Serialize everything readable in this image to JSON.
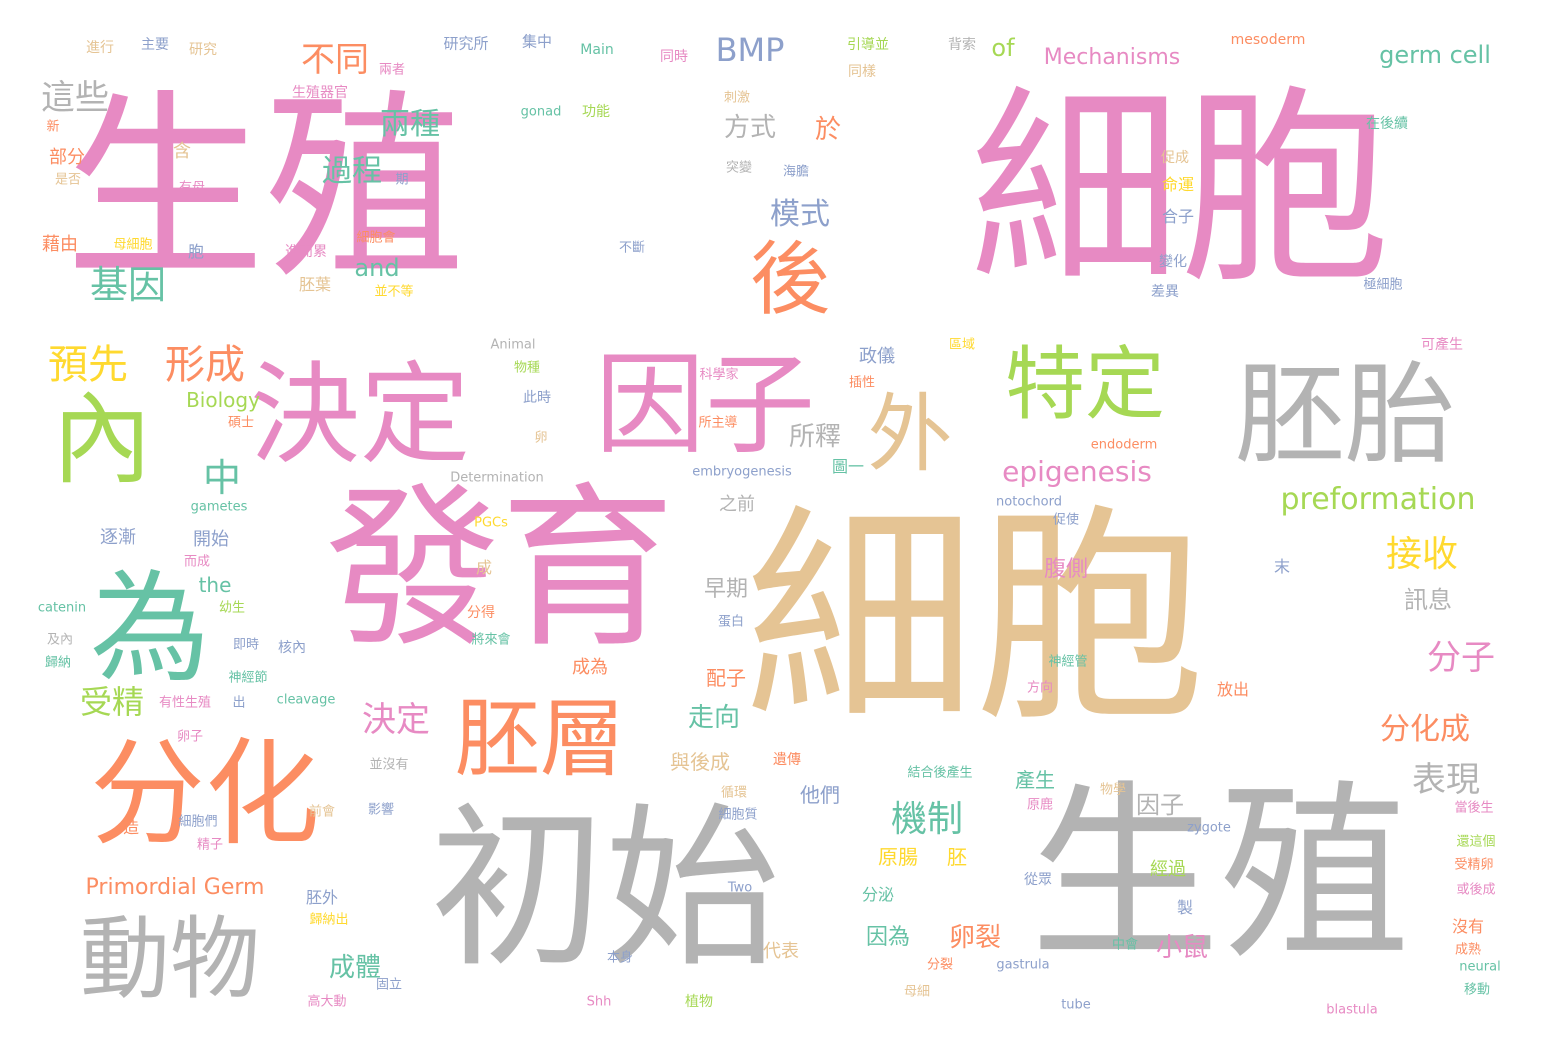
{
  "palette": {
    "pink": "#e78ac3",
    "tan": "#e5c494",
    "grey": "#b3b3b3",
    "orange": "#fc8d62",
    "green": "#a6d854",
    "teal": "#66c2a5",
    "yellow": "#ffd92f",
    "blue": "#8da0cb",
    "background": "#ffffff"
  },
  "words": [
    "生殖",
    "細胞",
    "細胞",
    "發育",
    "初始",
    "生殖",
    "決定",
    "因子",
    "胚胎",
    "內",
    "為",
    "分化",
    "外",
    "特定",
    "後",
    "胚層",
    "動物",
    "預先",
    "形成",
    "基因",
    "中",
    "機制",
    "接收",
    "受精",
    "決定",
    "表現",
    "分子",
    "分化成",
    "BMP",
    "不同",
    "這些",
    "兩種",
    "過程",
    "模式",
    "方式",
    "於",
    "所釋",
    "epigenesis",
    "preformation",
    "germ cell",
    "Mechanisms",
    "of",
    "and",
    "Biology",
    "Primordial Germ",
    "the",
    "因子",
    "走向",
    "成體",
    "卵裂",
    "小鼠",
    "訊息",
    "早期",
    "腹側",
    "因為",
    "原腸",
    "胚",
    "配子",
    "與後成",
    "產生",
    "經過",
    "成為",
    "他們",
    "進行",
    "主要",
    "研究",
    "研究所",
    "集中",
    "Main",
    "同時",
    "引導並",
    "背索",
    "mesoderm",
    "兩者",
    "生殖器官",
    "gonad",
    "功能",
    "刺激",
    "同樣",
    "新",
    "含",
    "部分",
    "是否",
    "有母",
    "期",
    "突變",
    "海膽",
    "在後續",
    "促成",
    "命運",
    "合子",
    "變化",
    "差異",
    "極細胞",
    "藉由",
    "母細胞",
    "胞",
    "進而累",
    "細胞會",
    "不斷",
    "胚葉",
    "並不等",
    "Animal",
    "物種",
    "政儀",
    "可產生",
    "Determination",
    "此時",
    "科學家",
    "插性",
    "區域",
    "卵",
    "所主導",
    "圖一",
    "endoderm",
    "embryogenesis",
    "碩士",
    "notochord",
    "促使",
    "之前",
    "gametes",
    "開始",
    "逐漸",
    "而成",
    "PGCs",
    "成",
    "末",
    "catenin",
    "幼生",
    "分得",
    "將來會",
    "蛋白",
    "即時",
    "核內",
    "神經節",
    "方向",
    "神經管",
    "及內",
    "歸納",
    "cleavage",
    "放出",
    "有性生殖",
    "出",
    "卵子",
    "並沒有",
    "循環",
    "遺傳",
    "結合後產生",
    "影響",
    "前會",
    "細胞們",
    "精子",
    "細胞質",
    "物學",
    "原鹿",
    "zygote",
    "當後生",
    "還這個",
    "受精卵",
    "造",
    "從眾",
    "或後成",
    "沒有",
    "代表",
    "本身",
    "分裂",
    "植物",
    "母細",
    "成熟",
    "gastrula",
    "neural",
    "tube",
    "移動",
    "Shh",
    "高大動",
    "固立",
    "歸納出",
    "blastula",
    "中會",
    "Two",
    "胚外",
    "分泌",
    "製"
  ]
}
